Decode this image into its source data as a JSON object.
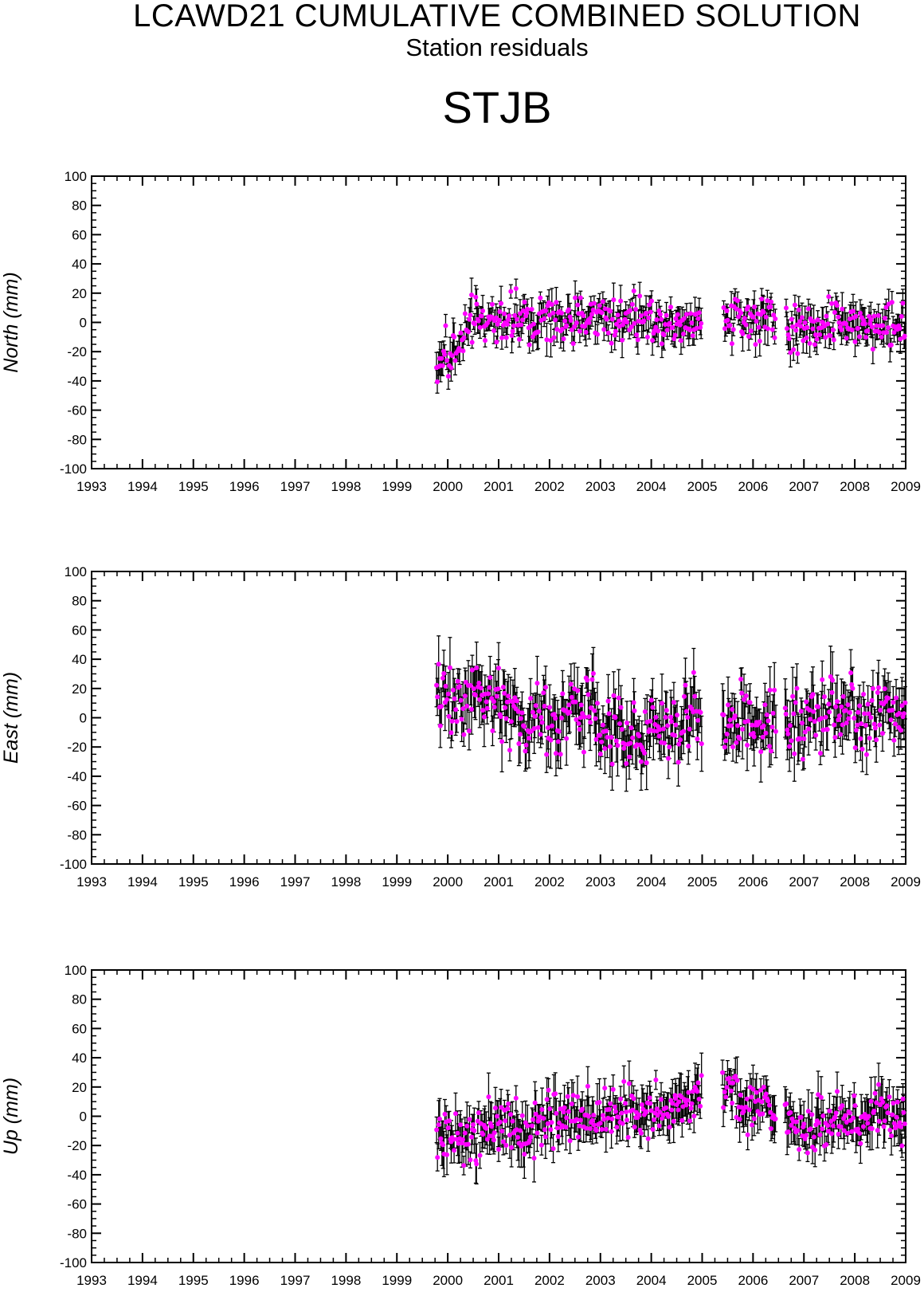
{
  "header": {
    "title": "LCAWD21 CUMULATIVE COMBINED SOLUTION",
    "subtitle": "Station residuals",
    "station": "STJB"
  },
  "colors": {
    "point": "#ff00ff",
    "errorbar": "#000000",
    "axis": "#000000"
  },
  "chart_data": [
    {
      "type": "scatter",
      "ylabel": "North (mm)",
      "xlim": [
        1993,
        2009
      ],
      "ylim": [
        -100,
        100
      ],
      "x_ticks": [
        1993,
        1994,
        1995,
        1996,
        1997,
        1998,
        1999,
        2000,
        2001,
        2002,
        2003,
        2004,
        2005,
        2006,
        2007,
        2008,
        2009
      ],
      "y_ticks": [
        -100,
        -80,
        -60,
        -40,
        -20,
        0,
        20,
        40,
        60,
        80,
        100
      ],
      "data_start": 1999.77,
      "gaps": [
        [
          2005.0,
          2005.42
        ],
        [
          2006.45,
          2006.65
        ]
      ],
      "error_bars": true,
      "trend": [
        [
          1999.77,
          -28
        ],
        [
          2000.2,
          -18
        ],
        [
          2000.5,
          0
        ],
        [
          2001.0,
          2
        ],
        [
          2002.0,
          0
        ],
        [
          2003.0,
          4
        ],
        [
          2004.0,
          3
        ],
        [
          2005.0,
          -2
        ],
        [
          2005.45,
          8
        ],
        [
          2006.0,
          -1
        ],
        [
          2006.45,
          5
        ],
        [
          2006.7,
          -4
        ],
        [
          2007.5,
          -2
        ],
        [
          2008.0,
          1
        ],
        [
          2009.0,
          -3
        ]
      ],
      "spread": 8,
      "err_mean": 8
    },
    {
      "type": "scatter",
      "ylabel": "East (mm)",
      "xlim": [
        1993,
        2009
      ],
      "ylim": [
        -100,
        100
      ],
      "x_ticks": [
        1993,
        1994,
        1995,
        1996,
        1997,
        1998,
        1999,
        2000,
        2001,
        2002,
        2003,
        2004,
        2005,
        2006,
        2007,
        2008,
        2009
      ],
      "y_ticks": [
        -100,
        -80,
        -60,
        -40,
        -20,
        0,
        20,
        40,
        60,
        80,
        100
      ],
      "data_start": 1999.77,
      "gaps": [
        [
          2005.0,
          2005.38
        ],
        [
          2006.45,
          2006.62
        ]
      ],
      "error_bars": true,
      "trend": [
        [
          1999.77,
          12
        ],
        [
          2000.5,
          14
        ],
        [
          2001.0,
          10
        ],
        [
          2001.5,
          -5
        ],
        [
          2002.0,
          -2
        ],
        [
          2002.7,
          5
        ],
        [
          2003.0,
          0
        ],
        [
          2003.5,
          -10
        ],
        [
          2004.0,
          -8
        ],
        [
          2004.5,
          -8
        ],
        [
          2004.8,
          10
        ],
        [
          2005.0,
          -2
        ],
        [
          2005.4,
          -5
        ],
        [
          2006.0,
          0
        ],
        [
          2006.45,
          -5
        ],
        [
          2006.7,
          -3
        ],
        [
          2007.0,
          -5
        ],
        [
          2007.5,
          8
        ],
        [
          2008.0,
          0
        ],
        [
          2008.5,
          5
        ],
        [
          2009.0,
          3
        ]
      ],
      "spread": 12,
      "err_mean": 14
    },
    {
      "type": "scatter",
      "ylabel": "Up (mm)",
      "xlim": [
        1993,
        2009
      ],
      "ylim": [
        -100,
        100
      ],
      "x_ticks": [
        1993,
        1994,
        1995,
        1996,
        1997,
        1998,
        1999,
        2000,
        2001,
        2002,
        2003,
        2004,
        2005,
        2006,
        2007,
        2008,
        2009
      ],
      "y_ticks": [
        -100,
        -80,
        -60,
        -40,
        -20,
        0,
        20,
        40,
        60,
        80,
        100
      ],
      "data_start": 1999.77,
      "gaps": [
        [
          2005.0,
          2005.4
        ],
        [
          2006.45,
          2006.62
        ]
      ],
      "error_bars": true,
      "trend": [
        [
          1999.77,
          -10
        ],
        [
          2000.5,
          -15
        ],
        [
          2001.0,
          -5
        ],
        [
          2001.5,
          -10
        ],
        [
          2002.0,
          -3
        ],
        [
          2002.5,
          2
        ],
        [
          2003.0,
          0
        ],
        [
          2003.5,
          2
        ],
        [
          2004.0,
          5
        ],
        [
          2004.5,
          10
        ],
        [
          2005.0,
          18
        ],
        [
          2005.4,
          20
        ],
        [
          2006.0,
          8
        ],
        [
          2006.45,
          2
        ],
        [
          2006.7,
          0
        ],
        [
          2007.0,
          -8
        ],
        [
          2007.5,
          -5
        ],
        [
          2008.0,
          -2
        ],
        [
          2008.5,
          3
        ],
        [
          2009.0,
          0
        ]
      ],
      "spread": 9,
      "err_mean": 11
    }
  ]
}
